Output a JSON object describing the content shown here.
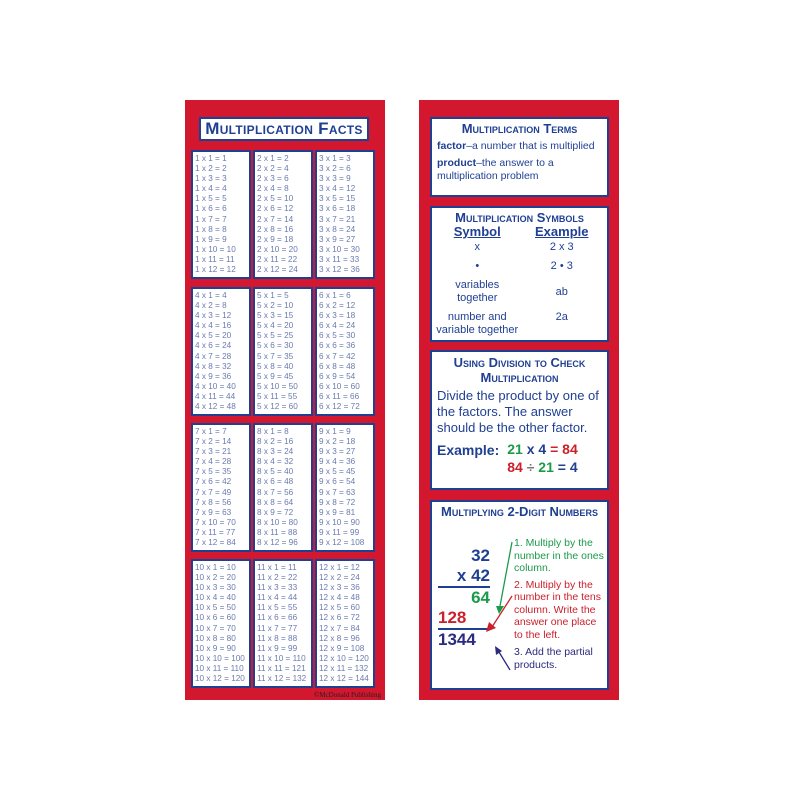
{
  "left": {
    "title": "Multiplication Facts",
    "copyright": "©McDonald Publishing",
    "tables": [
      [
        "1 x 1 = 1",
        "1 x 2 = 2",
        "1 x 3 = 3",
        "1 x 4 = 4",
        "1 x 5 = 5",
        "1 x 6 = 6",
        "1 x 7 = 7",
        "1 x 8 = 8",
        "1 x 9 = 9",
        "1 x 10 = 10",
        "1 x 11 = 11",
        "1 x 12 = 12"
      ],
      [
        "2 x 1 = 2",
        "2 x 2 = 4",
        "2 x 3 = 6",
        "2 x 4 = 8",
        "2 x 5 = 10",
        "2 x 6 = 12",
        "2 x 7 = 14",
        "2 x 8 = 16",
        "2 x 9 = 18",
        "2 x 10 = 20",
        "2 x 11 = 22",
        "2 x 12 = 24"
      ],
      [
        "3 x 1 = 3",
        "3 x 2 = 6",
        "3 x 3 = 9",
        "3 x 4 = 12",
        "3 x 5 = 15",
        "3 x 6 = 18",
        "3 x 7 = 21",
        "3 x 8 = 24",
        "3 x 9 = 27",
        "3 x 10 = 30",
        "3 x 11 = 33",
        "3 x 12 = 36"
      ],
      [
        "4 x 1 = 4",
        "4 x 2 = 8",
        "4 x 3 = 12",
        "4 x 4 = 16",
        "4 x 5 = 20",
        "4 x 6 = 24",
        "4 x 7 = 28",
        "4 x 8 = 32",
        "4 x 9 = 36",
        "4 x 10 = 40",
        "4 x 11 = 44",
        "4 x 12 = 48"
      ],
      [
        "5 x 1 = 5",
        "5 x 2 = 10",
        "5 x 3 = 15",
        "5 x 4 = 20",
        "5 x 5 = 25",
        "5 x 6 = 30",
        "5 x 7 = 35",
        "5 x 8 = 40",
        "5 x 9 = 45",
        "5 x 10 = 50",
        "5 x 11 = 55",
        "5 x 12 = 60"
      ],
      [
        "6 x 1 = 6",
        "6 x 2 = 12",
        "6 x 3 = 18",
        "6 x 4 = 24",
        "6 x 5 = 30",
        "6 x 6 = 36",
        "6 x 7 = 42",
        "6 x 8 = 48",
        "6 x 9 = 54",
        "6 x 10 = 60",
        "6 x 11 = 66",
        "6 x 12 = 72"
      ],
      [
        "7 x 1 = 7",
        "7 x 2 = 14",
        "7 x 3 = 21",
        "7 x 4 = 28",
        "7 x 5 = 35",
        "7 x 6 = 42",
        "7 x 7 = 49",
        "7 x 8 = 56",
        "7 x 9 = 63",
        "7 x 10 = 70",
        "7 x 11 = 77",
        "7 x 12 = 84"
      ],
      [
        "8 x 1 = 8",
        "8 x 2 = 16",
        "8 x 3 = 24",
        "8 x 4 = 32",
        "8 x 5 = 40",
        "8 x 6 = 48",
        "8 x 7 = 56",
        "8 x 8 = 64",
        "8 x 9 = 72",
        "8 x 10 = 80",
        "8 x 11 = 88",
        "8 x 12 = 96"
      ],
      [
        "9 x 1 = 9",
        "9 x 2 = 18",
        "9 x 3 = 27",
        "9 x 4 = 36",
        "9 x 5 = 45",
        "9 x 6 = 54",
        "9 x 7 = 63",
        "9 x 8 = 72",
        "9 x 9 = 81",
        "9 x 10 = 90",
        "9 x 11 = 99",
        "9 x 12 = 108"
      ],
      [
        "10 x 1 = 10",
        "10 x 2 = 20",
        "10 x 3 = 30",
        "10 x 4 = 40",
        "10 x 5 = 50",
        "10 x 6 = 60",
        "10 x 7 = 70",
        "10 x 8 = 80",
        "10 x 9 = 90",
        "10 x 10 = 100",
        "10 x 11 = 110",
        "10 x 12 = 120"
      ],
      [
        "11 x 1 = 11",
        "11 x 2 = 22",
        "11 x 3 = 33",
        "11 x 4 = 44",
        "11 x 5 = 55",
        "11 x 6 = 66",
        "11 x 7 = 77",
        "11 x 8 = 88",
        "11 x 9 = 99",
        "11 x 10 = 110",
        "11 x 11 = 121",
        "11 x 12 = 132"
      ],
      [
        "12 x 1 = 12",
        "12 x 2 = 24",
        "12 x 3 = 36",
        "12 x 4 = 48",
        "12 x 5 = 60",
        "12 x 6 = 72",
        "12 x 7 = 84",
        "12 x 8 = 96",
        "12 x 9 = 108",
        "12 x 10 = 120",
        "12 x 11 = 132",
        "12 x 12 = 144"
      ]
    ]
  },
  "terms": {
    "title": "Multiplication Terms",
    "factor_word": "factor",
    "factor_def": "–a number that is multiplied",
    "product_word": "product",
    "product_def": "–the answer to a multiplication problem"
  },
  "symbols": {
    "title": "Multiplication Symbols",
    "col1": "Symbol",
    "col2": "Example",
    "rows": [
      [
        "x",
        "2 x 3"
      ],
      [
        "•",
        "2 • 3"
      ],
      [
        "variables together",
        "ab"
      ],
      [
        "number and variable together",
        "2a"
      ]
    ]
  },
  "division": {
    "title": "Using Division to Check Multiplication",
    "text": "Divide the product by one of the factors.  The answer should be the other factor.",
    "example_label": "Example:",
    "eq1": [
      "21",
      "x 4",
      "=",
      "84"
    ],
    "eq2": [
      "84",
      "÷",
      "21",
      "= 4"
    ]
  },
  "twodigit": {
    "title": "Multiplying 2-Digit Numbers",
    "n1": "32",
    "n2": "x 42",
    "p1": "64",
    "p2": "128",
    "sum": "1344",
    "step1": "1. Multiply by the number in the ones column.",
    "step2": "2. Multiply by the number in the tens column. Write the answer one place to the left.",
    "step3": "3. Add the partial products."
  },
  "colors": {
    "red": "#d3172e",
    "blue": "#1f3f93",
    "green": "#1b9a4a",
    "step_red": "#cc1f2a"
  }
}
